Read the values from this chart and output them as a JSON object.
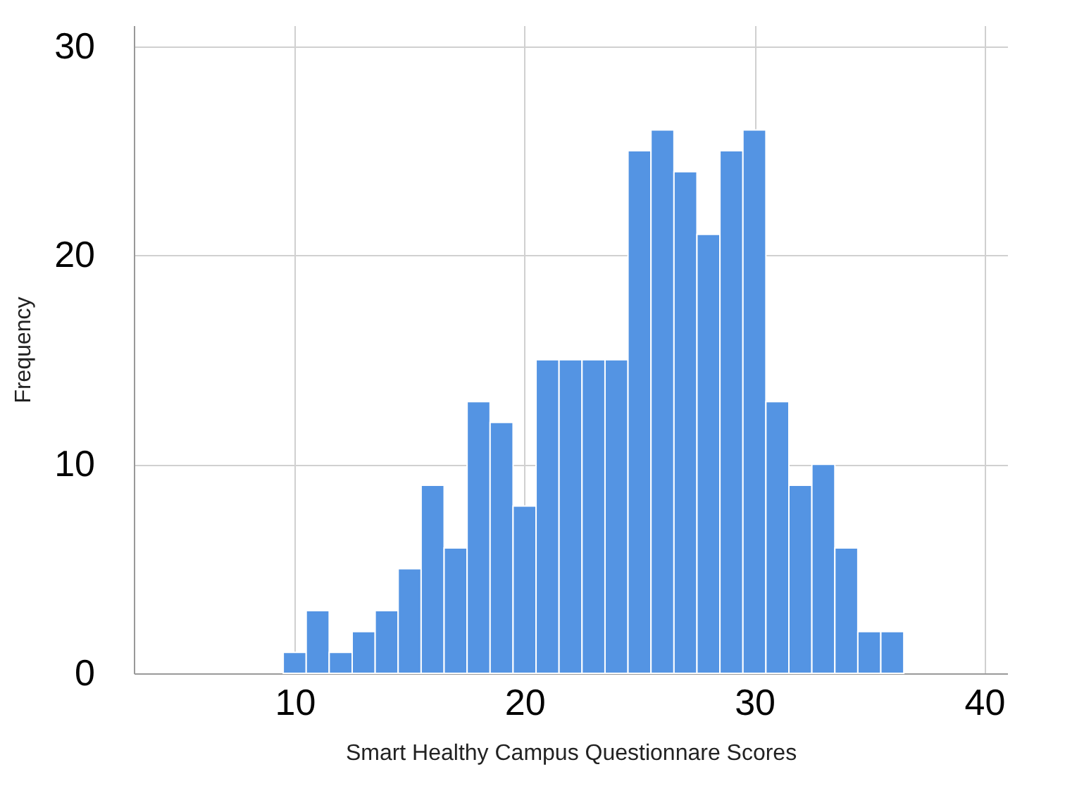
{
  "chart_data": {
    "type": "histogram",
    "xlabel": "Smart Healthy Campus Questionnare Scores",
    "ylabel": "Frequency",
    "bins": [
      9.5,
      10.5,
      11.5,
      12.5,
      13.5,
      14.5,
      15.5,
      16.5,
      17.5,
      18.5,
      19.5,
      20.5,
      21.5,
      22.5,
      23.5,
      24.5,
      25.5,
      26.5,
      27.5,
      28.5,
      29.5,
      30.5,
      31.5,
      32.5,
      33.5,
      34.5,
      35.5,
      36.5
    ],
    "values": [
      1,
      3,
      1,
      2,
      3,
      5,
      9,
      6,
      13,
      12,
      8,
      15,
      15,
      15,
      15,
      25,
      26,
      24,
      21,
      25,
      26,
      13,
      9,
      10,
      6,
      2,
      2
    ],
    "color": "#5494e3",
    "xlim": [
      3,
      41
    ],
    "xticks": [
      10,
      20,
      30,
      40
    ],
    "ylim": [
      0,
      31
    ],
    "yticks": [
      0,
      10,
      20,
      30
    ],
    "grid": true
  }
}
